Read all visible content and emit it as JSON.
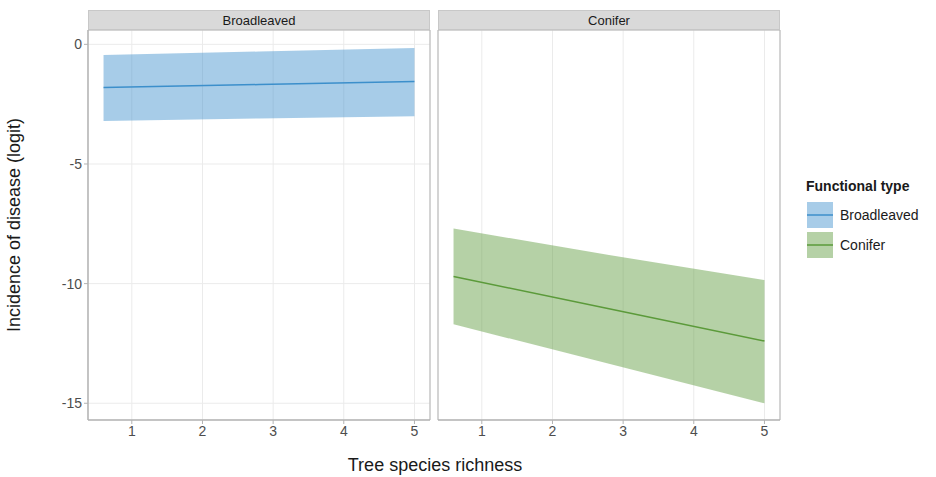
{
  "chart_data": [
    {
      "type": "line",
      "title": "Broadleaved",
      "x": [
        0.6,
        2.8,
        5
      ],
      "xlim": [
        0.38,
        5.22
      ],
      "xticks": [
        1,
        2,
        3,
        4,
        5
      ],
      "ylim": [
        -15.7,
        0.6
      ],
      "yticks": [
        -15,
        -10,
        -5,
        0
      ],
      "grid": true,
      "series": [
        {
          "name": "Broadleaved",
          "color": "#3c8fcb",
          "values": [
            -1.8,
            -1.68,
            -1.55
          ],
          "lower": [
            -3.2,
            -3.1,
            -3.0
          ],
          "upper": [
            -0.45,
            -0.3,
            -0.15
          ]
        }
      ]
    },
    {
      "type": "line",
      "title": "Conifer",
      "x": [
        0.6,
        2.8,
        5
      ],
      "xlim": [
        0.38,
        5.22
      ],
      "xticks": [
        1,
        2,
        3,
        4,
        5
      ],
      "ylim": [
        -15.7,
        0.6
      ],
      "yticks": [
        -15,
        -10,
        -5,
        0
      ],
      "grid": true,
      "tick_labels": "x",
      "series": [
        {
          "name": "Conifer",
          "color": "#5b9a3a",
          "values": [
            -9.7,
            -11.05,
            -12.4
          ],
          "lower": [
            -11.7,
            -13.35,
            -15.0
          ],
          "upper": [
            -7.7,
            -8.8,
            -9.85
          ]
        }
      ]
    }
  ],
  "x_label": "Tree species richness",
  "y_label": "Incidence of disease (logit)",
  "legend_title": "Functional type"
}
